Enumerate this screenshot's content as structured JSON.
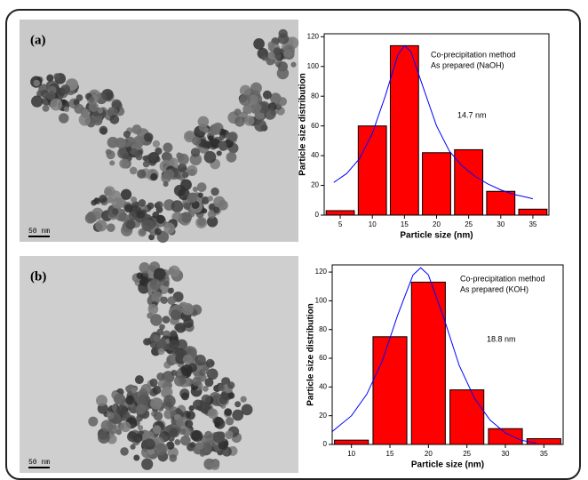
{
  "figure": {
    "panels": [
      {
        "label": "(a)",
        "scale_bar": "50 nm"
      },
      {
        "label": "(b)",
        "scale_bar": "50 nm"
      }
    ]
  },
  "chart_data": [
    {
      "type": "bar",
      "x_label": "Particle size (nm)",
      "y_label": "Particle size distribution",
      "annotations": [
        "Co-precipitation method",
        "As prepared (NaOH)",
        "14.7 nm"
      ],
      "x": [
        5,
        10,
        15,
        20,
        25,
        30,
        35
      ],
      "values": [
        3,
        60,
        114,
        42,
        44,
        16,
        4
      ],
      "color": "#ff0000",
      "fit": {
        "color": "#0000ff",
        "x": [
          4,
          6,
          8,
          10,
          12,
          14,
          15,
          16,
          18,
          20,
          22,
          24,
          26,
          28,
          30,
          32,
          34,
          35
        ],
        "y": [
          22,
          28,
          38,
          55,
          80,
          108,
          114,
          110,
          85,
          60,
          43,
          33,
          26,
          21,
          17,
          14,
          12,
          11
        ]
      },
      "xlim": [
        2.5,
        37.5
      ],
      "xticks": [
        5,
        10,
        15,
        20,
        25,
        30,
        35
      ],
      "ylim": [
        0,
        122
      ],
      "yticks": [
        0,
        20,
        40,
        60,
        80,
        100,
        120
      ]
    },
    {
      "type": "bar",
      "x_label": "Particle size (nm)",
      "y_label": "Particle size distribution",
      "annotations": [
        "Co-precipitation method",
        "As prepared (KOH)",
        "18.8 nm"
      ],
      "x": [
        10,
        15,
        20,
        25,
        30,
        35
      ],
      "values": [
        3,
        75,
        113,
        38,
        11,
        4
      ],
      "color": "#ff0000",
      "fit": {
        "color": "#0000ff",
        "x": [
          7.5,
          10,
          12,
          14,
          16,
          18,
          19,
          20,
          22,
          24,
          26,
          28,
          30,
          32,
          34
        ],
        "y": [
          9,
          20,
          35,
          58,
          90,
          118,
          123,
          118,
          88,
          55,
          32,
          17,
          8,
          3,
          1
        ]
      },
      "xlim": [
        7.5,
        37.5
      ],
      "xticks": [
        10,
        15,
        20,
        25,
        30,
        35
      ],
      "ylim": [
        0,
        125
      ],
      "yticks": [
        0,
        20,
        40,
        60,
        80,
        100,
        120
      ]
    }
  ]
}
